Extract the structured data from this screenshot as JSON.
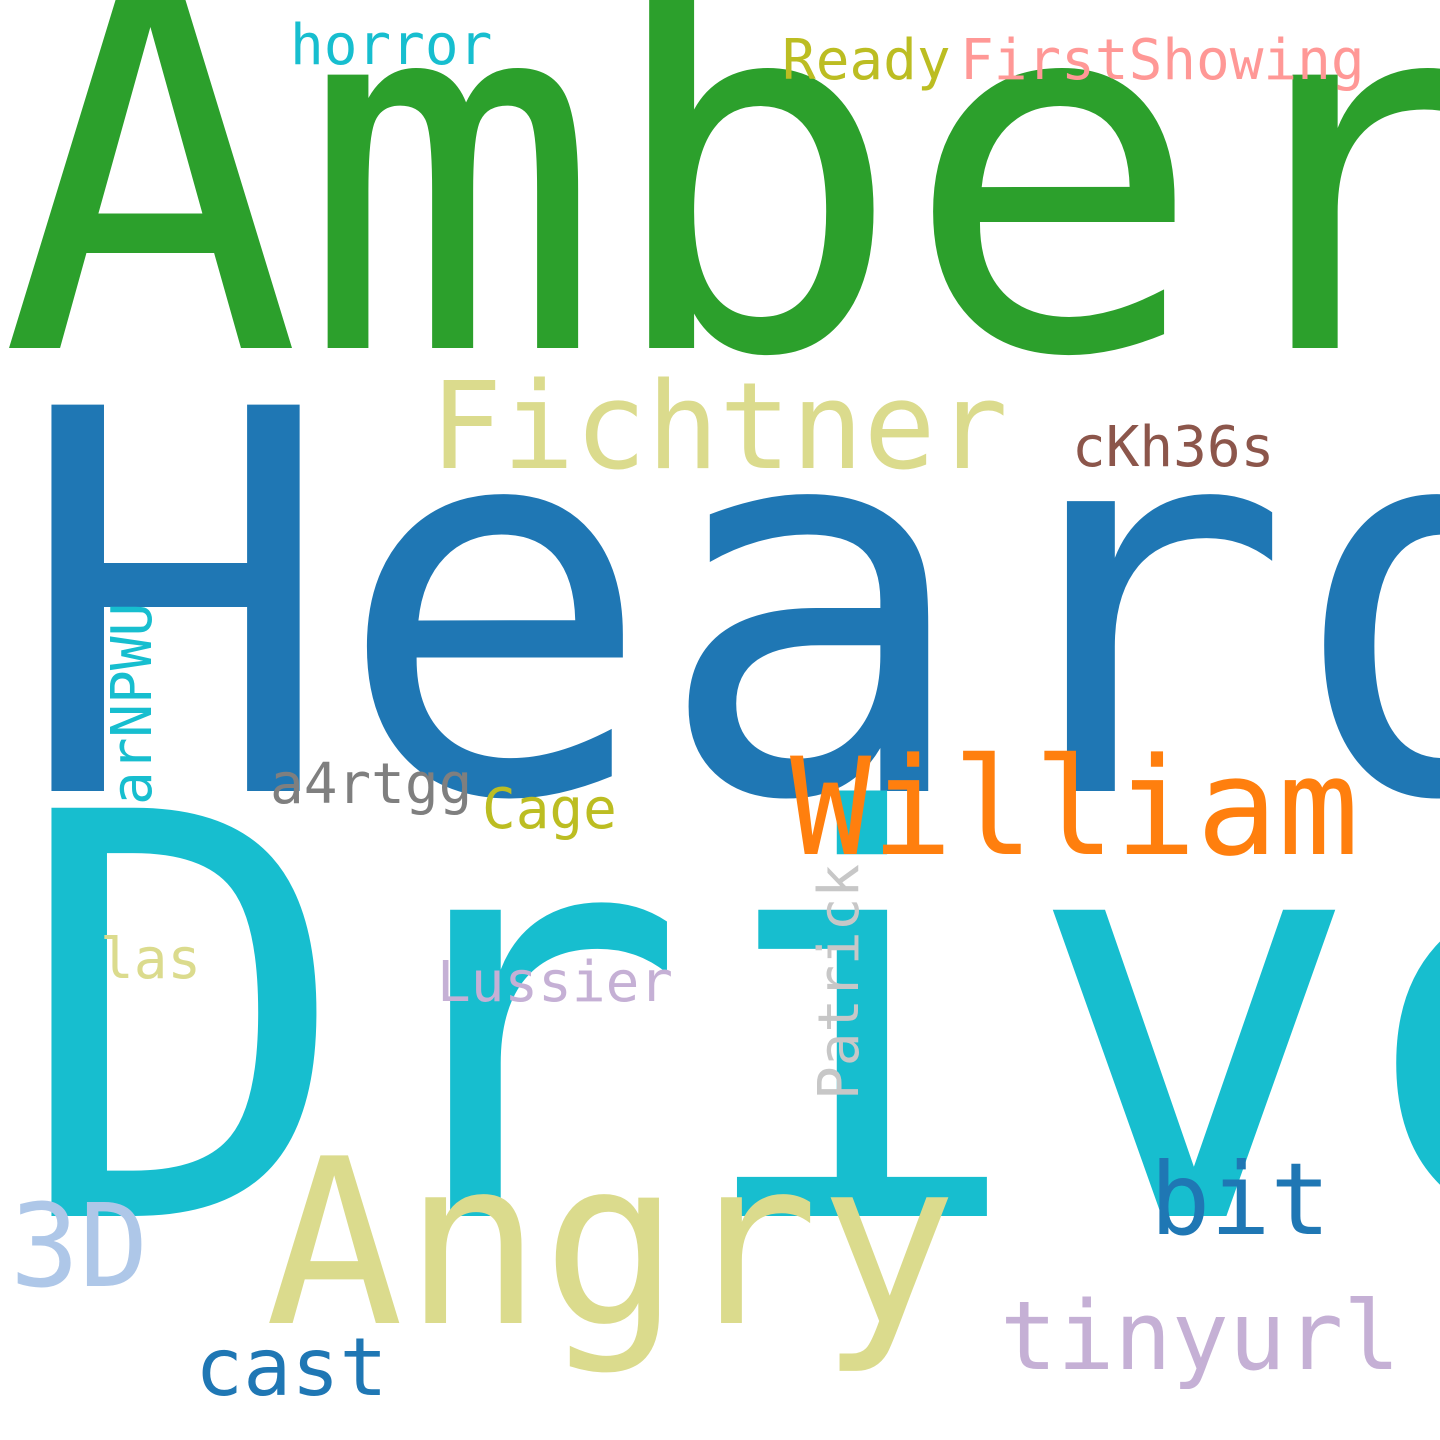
{
  "words": [
    {
      "id": "amber",
      "text": "Amber",
      "color": "#2ca02c"
    },
    {
      "id": "heard",
      "text": "Heard",
      "color": "#1f77b4"
    },
    {
      "id": "drive",
      "text": "Drive",
      "color": "#17becf"
    },
    {
      "id": "fichtner",
      "text": "Fichtner",
      "color": "#dbdb8d"
    },
    {
      "id": "william",
      "text": "William",
      "color": "#ff7f0e"
    },
    {
      "id": "angry",
      "text": "Angry",
      "color": "#dbdb8d"
    },
    {
      "id": "3d",
      "text": "3D",
      "color": "#aec7e8"
    },
    {
      "id": "bit",
      "text": "bit",
      "color": "#1f77b4"
    },
    {
      "id": "tinyurl",
      "text": "tinyurl",
      "color": "#c5b0d5"
    },
    {
      "id": "cast",
      "text": "cast",
      "color": "#1f77b4"
    },
    {
      "id": "horror",
      "text": "horror",
      "color": "#17becf"
    },
    {
      "id": "ready",
      "text": "Ready",
      "color": "#bcbd22"
    },
    {
      "id": "firstshow",
      "text": "FirstShowing",
      "color": "#ff9896"
    },
    {
      "id": "ckh36s",
      "text": "cKh36s",
      "color": "#8c564b"
    },
    {
      "id": "a4rtgg",
      "text": "a4rtgg",
      "color": "#7f7f7f"
    },
    {
      "id": "cage",
      "text": "Cage",
      "color": "#bcbd22"
    },
    {
      "id": "las",
      "text": "las",
      "color": "#dbdb8d"
    },
    {
      "id": "lussier",
      "text": "Lussier",
      "color": "#c5b0d5"
    },
    {
      "id": "arnpwu",
      "text": "arNPWU",
      "color": "#17becf"
    },
    {
      "id": "patrick",
      "text": "Patrick",
      "color": "#c7c7c7"
    }
  ]
}
